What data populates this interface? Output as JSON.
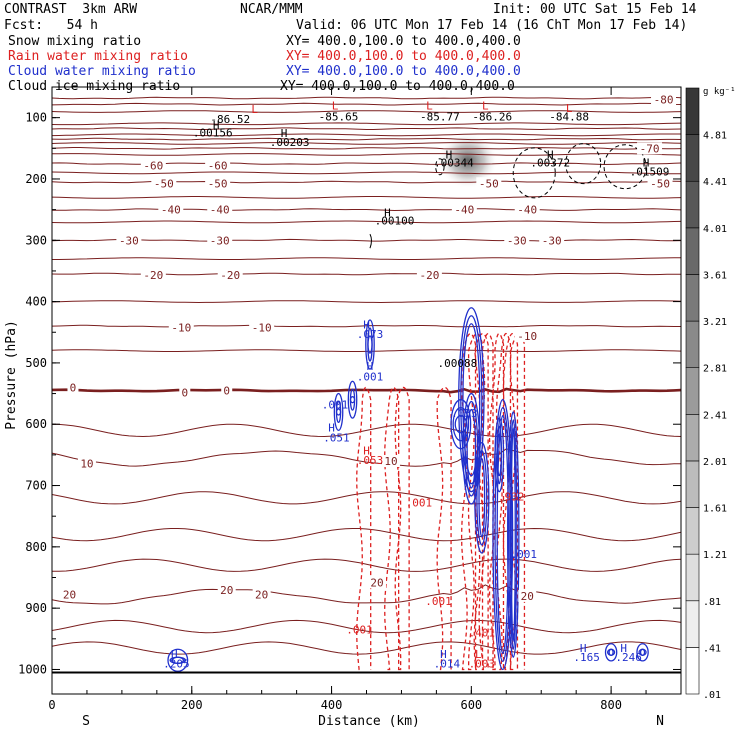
{
  "header": {
    "title": "CONTRAST  3km ARW",
    "center": "NCAR/MMM",
    "init": "Init: 00 UTC Sat 15 Feb 14",
    "fcst": "Fcst:   54 h",
    "valid": "Valid: 06 UTC Mon 17 Feb 14 (16 ChT Mon 17 Feb 14)",
    "fields": [
      {
        "name": "Snow mixing ratio",
        "xy": "XY= 400.0,100.0 to 400.0,400.0",
        "color": "#000000"
      },
      {
        "name": "Rain water mixing ratio",
        "xy": "XY= 400.0,100.0 to 400.0,400.0",
        "color": "#dd2020"
      },
      {
        "name": "Cloud water mixing ratio",
        "xy": "XY= 400.0,100.0 to 400.0,400.0",
        "color": "#2030cc"
      },
      {
        "name": "Cloud ice mixing ratio",
        "xy": "XY= 400.0,100.0 to 400.0,400.0",
        "color": "#000000"
      }
    ]
  },
  "colors": {
    "temperature": "#7a1f1f",
    "rain": "#dd2020",
    "cloud": "#2030cc",
    "snow": "#000000"
  },
  "chart_data": {
    "type": "cross-section",
    "xlabel": "Distance (km)",
    "ylabel": "Pressure (hPa)",
    "xlim": [
      0,
      900
    ],
    "ylim": [
      1040,
      50
    ],
    "x_ticks": [
      0,
      200,
      400,
      600,
      800
    ],
    "x_tick_labels": [
      "0",
      "200",
      "400",
      "600",
      "800"
    ],
    "y_ticks": [
      100,
      200,
      300,
      400,
      500,
      600,
      700,
      800,
      900,
      1000
    ],
    "y_tick_labels": [
      "100",
      "200",
      "300",
      "400",
      "500",
      "600",
      "700",
      "800",
      "900",
      "1000"
    ],
    "end_labels": {
      "left": "S",
      "right": "N"
    },
    "colorbar": {
      "unit": "g kg⁻¹",
      "min": 0.01,
      "max": 5.21,
      "step": 0.4,
      "labels": [
        "4.81",
        "4.41",
        "4.01",
        "3.61",
        "3.21",
        "2.81",
        "2.41",
        "2.01",
        "1.61",
        "1.21",
        ".81",
        ".41",
        ".01"
      ]
    },
    "temperature_contours": [
      {
        "t": -80,
        "p": 68
      },
      {
        "t": -70,
        "p": 78
      },
      {
        "t": -70,
        "p": 118
      },
      {
        "t": -70,
        "p": 135
      },
      {
        "t": -70,
        "p": 150
      },
      {
        "t": -60,
        "p": 175
      },
      {
        "t": -50,
        "p": 205
      },
      {
        "t": -40,
        "p": 250
      },
      {
        "t": -30,
        "p": 300
      },
      {
        "t": -20,
        "p": 355
      },
      {
        "t": -10,
        "p": 440
      },
      {
        "t": 0,
        "p": 545
      },
      {
        "t": 10,
        "p": 655
      },
      {
        "t": 20,
        "p": 880
      }
    ],
    "temperature_labels": [
      {
        "text": "-80",
        "x": 875,
        "p": 70
      },
      {
        "text": "-70",
        "x": 855,
        "p": 150
      },
      {
        "text": "-60",
        "x": 145,
        "p": 178
      },
      {
        "text": "-60",
        "x": 237,
        "p": 178
      },
      {
        "text": "-50",
        "x": 160,
        "p": 207
      },
      {
        "text": "-50",
        "x": 237,
        "p": 207
      },
      {
        "text": "-50",
        "x": 625,
        "p": 207
      },
      {
        "text": "-50",
        "x": 870,
        "p": 207
      },
      {
        "text": "-40",
        "x": 170,
        "p": 250
      },
      {
        "text": "-40",
        "x": 240,
        "p": 250
      },
      {
        "text": "-40",
        "x": 590,
        "p": 250
      },
      {
        "text": "-40",
        "x": 680,
        "p": 250
      },
      {
        "text": "-30",
        "x": 110,
        "p": 300
      },
      {
        "text": "-30",
        "x": 240,
        "p": 300
      },
      {
        "text": "-30",
        "x": 665,
        "p": 300
      },
      {
        "text": "-30",
        "x": 715,
        "p": 300
      },
      {
        "text": "-20",
        "x": 145,
        "p": 357
      },
      {
        "text": "-20",
        "x": 255,
        "p": 357
      },
      {
        "text": "-20",
        "x": 540,
        "p": 357
      },
      {
        "text": "-10",
        "x": 185,
        "p": 442
      },
      {
        "text": "-10",
        "x": 300,
        "p": 442
      },
      {
        "text": "-10",
        "x": 680,
        "p": 456
      },
      {
        "text": "0",
        "x": 30,
        "p": 540
      },
      {
        "text": "0",
        "x": 190,
        "p": 548
      },
      {
        "text": "0",
        "x": 250,
        "p": 545
      },
      {
        "text": "10",
        "x": 50,
        "p": 664
      },
      {
        "text": "10",
        "x": 485,
        "p": 660
      },
      {
        "text": "20",
        "x": 25,
        "p": 878
      },
      {
        "text": "20",
        "x": 250,
        "p": 870
      },
      {
        "text": "20",
        "x": 300,
        "p": 878
      },
      {
        "text": "20",
        "x": 465,
        "p": 858
      },
      {
        "text": "20",
        "x": 680,
        "p": 880
      }
    ],
    "snow_ice_labels": [
      {
        "text": "L",
        "x": 290,
        "p": 86,
        "color": "#dd2020"
      },
      {
        "text": "-86.52",
        "x": 255,
        "p": 102,
        "color": "#000000"
      },
      {
        "text": "L",
        "x": 405,
        "p": 80,
        "color": "#dd2020"
      },
      {
        "text": "-85.65",
        "x": 410,
        "p": 98,
        "color": "#000000"
      },
      {
        "text": "L",
        "x": 540,
        "p": 80,
        "color": "#dd2020"
      },
      {
        "text": "-85.77",
        "x": 555,
        "p": 98,
        "color": "#000000"
      },
      {
        "text": "L",
        "x": 620,
        "p": 80,
        "color": "#dd2020"
      },
      {
        "text": "-86.26",
        "x": 630,
        "p": 98,
        "color": "#000000"
      },
      {
        "text": "L",
        "x": 740,
        "p": 84,
        "color": "#dd2020"
      },
      {
        "text": "-84.88",
        "x": 740,
        "p": 98,
        "color": "#000000"
      },
      {
        "text": "H",
        "x": 235,
        "p": 112,
        "color": "#000000"
      },
      {
        "text": ".00156",
        "x": 230,
        "p": 124,
        "color": "#000000"
      },
      {
        "text": "H",
        "x": 332,
        "p": 125,
        "color": "#000000"
      },
      {
        "text": ".00203",
        "x": 340,
        "p": 140,
        "color": "#000000"
      },
      {
        "text": "H",
        "x": 568,
        "p": 160,
        "color": "#000000"
      },
      {
        "text": ".00344",
        "x": 575,
        "p": 173,
        "color": "#000000"
      },
      {
        "text": "H",
        "x": 713,
        "p": 160,
        "color": "#000000"
      },
      {
        "text": ".00372",
        "x": 713,
        "p": 173,
        "color": "#000000"
      },
      {
        "text": "H",
        "x": 850,
        "p": 173,
        "color": "#000000"
      },
      {
        "text": ".01509",
        "x": 855,
        "p": 188,
        "color": "#000000"
      },
      {
        "text": "H",
        "x": 480,
        "p": 255,
        "color": "#000000"
      },
      {
        "text": ".00100",
        "x": 490,
        "p": 268,
        "color": "#000000"
      },
      {
        "text": ".00088",
        "x": 580,
        "p": 500,
        "color": "#000000"
      }
    ],
    "cloud_labels": [
      {
        "text": "H",
        "x": 450,
        "p": 437
      },
      {
        "text": ".073",
        "x": 455,
        "p": 453
      },
      {
        "text": "H",
        "x": 455,
        "p": 505
      },
      {
        "text": ".001",
        "x": 455,
        "p": 522
      },
      {
        "text": ".001",
        "x": 405,
        "p": 568
      },
      {
        "text": "H",
        "x": 400,
        "p": 605
      },
      {
        "text": ".051",
        "x": 407,
        "p": 622
      },
      {
        "text": "H",
        "x": 175,
        "p": 975
      },
      {
        "text": ".205",
        "x": 178,
        "p": 990
      },
      {
        "text": "H",
        "x": 560,
        "p": 975
      },
      {
        "text": ".014",
        "x": 565,
        "p": 990
      },
      {
        "text": ".001",
        "x": 675,
        "p": 812
      },
      {
        "text": ".053",
        "x": 590,
        "p": 582
      },
      {
        "text": "H",
        "x": 760,
        "p": 965
      },
      {
        "text": ".165",
        "x": 765,
        "p": 980
      },
      {
        "text": "H",
        "x": 818,
        "p": 965
      },
      {
        "text": ".246",
        "x": 825,
        "p": 980
      }
    ],
    "rain_labels": [
      {
        "text": "H",
        "x": 450,
        "p": 643
      },
      {
        "text": ".053",
        "x": 455,
        "p": 658
      },
      {
        "text": ".001",
        "x": 525,
        "p": 728
      },
      {
        "text": ".001",
        "x": 553,
        "p": 888
      },
      {
        "text": ".001",
        "x": 440,
        "p": 935
      },
      {
        "text": ".401",
        "x": 615,
        "p": 940
      },
      {
        "text": "L",
        "x": 610,
        "p": 975
      },
      {
        "text": ".003",
        "x": 615,
        "p": 990
      },
      {
        "text": ".932",
        "x": 657,
        "p": 718
      }
    ],
    "surface_pressure": 1005
  }
}
